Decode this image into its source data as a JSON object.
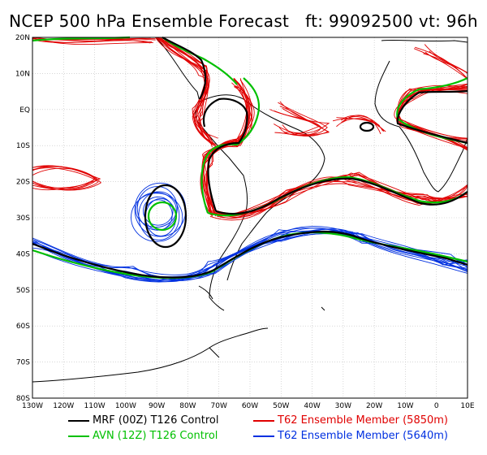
{
  "title": "NCEP 500 hPa Ensemble Forecast   ft: 99092500 vt: 96h",
  "lat_labels": [
    "20N",
    "10N",
    "EQ",
    "10S",
    "20S",
    "30S",
    "40S",
    "50S",
    "60S",
    "70S",
    "80S"
  ],
  "lon_labels": [
    "130W",
    "120W",
    "110W",
    "100W",
    "90W",
    "80W",
    "70W",
    "60W",
    "50W",
    "40W",
    "30W",
    "20W",
    "10W",
    "0",
    "10E"
  ],
  "colors": {
    "mrf": "#000000",
    "avn": "#00c000",
    "member_5850": "#e00000",
    "member_5640": "#0030e0",
    "coast": "#000000"
  },
  "legend": [
    {
      "text": "MRF (00Z) T126 Control",
      "color": "#000000"
    },
    {
      "text": "T62 Ensemble Member (5850m)",
      "color": "#e00000"
    },
    {
      "text": "AVN (12Z) T126 Control",
      "color": "#00c000"
    },
    {
      "text": "T62 Ensemble Member (5640m)",
      "color": "#0030e0"
    }
  ]
}
